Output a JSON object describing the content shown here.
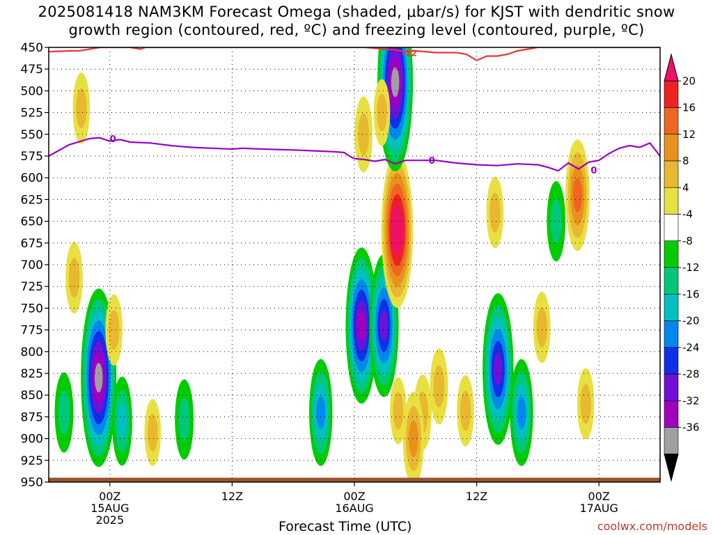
{
  "title": {
    "line1": "2025081418 NAM3KM Forecast Omega (shaded, μbar/s) for KJST with dendritic snow",
    "line2": "growth region (contoured, red, ºC) and freezing level (contoured, purple, ºC)"
  },
  "credit": "coolwx.com/models",
  "chart_data": {
    "type": "heatmap",
    "xlabel": "Forecast Time (UTC)",
    "ylabel": "",
    "x_range": [
      "2025-08-14 18Z",
      "2025-08-17 06Z"
    ],
    "x_ticks": [
      {
        "hours": 6,
        "label1": "00Z",
        "label2": "15AUG",
        "label3": "2025"
      },
      {
        "hours": 18,
        "label1": "12Z",
        "label2": "",
        "label3": ""
      },
      {
        "hours": 30,
        "label1": "00Z",
        "label2": "16AUG",
        "label3": ""
      },
      {
        "hours": 42,
        "label1": "12Z",
        "label2": "",
        "label3": ""
      },
      {
        "hours": 54,
        "label1": "00Z",
        "label2": "17AUG",
        "label3": ""
      }
    ],
    "y_range": [
      450,
      950
    ],
    "y_ticks": [
      450,
      475,
      500,
      525,
      550,
      575,
      600,
      625,
      650,
      675,
      700,
      725,
      750,
      775,
      800,
      825,
      850,
      875,
      900,
      925,
      950
    ],
    "colorbar": {
      "labels": [
        "20",
        "16",
        "12",
        "8",
        "4",
        "-4",
        "-8",
        "-12",
        "-16",
        "-20",
        "-24",
        "-28",
        "-32",
        "-36"
      ],
      "colors": [
        "#ee1166",
        "#ee2222",
        "#ee6622",
        "#e8921e",
        "#e8b830",
        "#e8e040",
        "#ffffff",
        "#00cc00",
        "#00c878",
        "#00c0c0",
        "#0088ee",
        "#1030e8",
        "#7010d8",
        "#a000c0",
        "#a0a0a0",
        "#000000"
      ]
    },
    "freezing_level": {
      "label": "0",
      "color": "#9a00c8",
      "points": [
        [
          0,
          575
        ],
        [
          2,
          562
        ],
        [
          4,
          555
        ],
        [
          5,
          554
        ],
        [
          6,
          558
        ],
        [
          7,
          556
        ],
        [
          8,
          559
        ],
        [
          10,
          560
        ],
        [
          12,
          563
        ],
        [
          14,
          565
        ],
        [
          16,
          566
        ],
        [
          18,
          567
        ],
        [
          19,
          566
        ],
        [
          21,
          567
        ],
        [
          24,
          568
        ],
        [
          26,
          569
        ],
        [
          28,
          570
        ],
        [
          29,
          571
        ],
        [
          29.5,
          575
        ],
        [
          30,
          578
        ],
        [
          31,
          579
        ],
        [
          32,
          581
        ],
        [
          33,
          579
        ],
        [
          34,
          584
        ],
        [
          35,
          580
        ],
        [
          36,
          580
        ],
        [
          38,
          580
        ],
        [
          40,
          583
        ],
        [
          42,
          585
        ],
        [
          44,
          586
        ],
        [
          46,
          584
        ],
        [
          48,
          585
        ],
        [
          49,
          588
        ],
        [
          50,
          592
        ],
        [
          51,
          583
        ],
        [
          52,
          590
        ],
        [
          53,
          582
        ],
        [
          54,
          580
        ],
        [
          55,
          572
        ],
        [
          56,
          566
        ],
        [
          57,
          563
        ],
        [
          58,
          565
        ],
        [
          59,
          560
        ],
        [
          60,
          575
        ]
      ]
    },
    "dgz_contour": {
      "label": "-12",
      "color": "#ee3333",
      "points": [
        [
          0,
          455
        ],
        [
          2,
          454
        ],
        [
          3,
          454
        ],
        [
          4,
          452
        ],
        [
          5,
          450
        ],
        [
          8,
          450
        ],
        [
          9,
          452
        ],
        [
          9.5,
          450
        ],
        [
          31,
          450
        ],
        [
          34,
          453
        ],
        [
          35,
          455
        ],
        [
          36,
          454
        ],
        [
          38,
          456
        ],
        [
          40,
          456
        ],
        [
          41,
          458
        ],
        [
          42,
          465
        ],
        [
          43,
          460
        ],
        [
          44,
          460
        ],
        [
          45,
          458
        ],
        [
          46,
          454
        ],
        [
          47,
          452
        ],
        [
          48,
          450
        ],
        [
          60,
          450
        ]
      ]
    },
    "omega_features": [
      {
        "t": 3.2,
        "p": 520,
        "value": 6
      },
      {
        "t": 2.5,
        "p": 715,
        "value": 6
      },
      {
        "t": 4.9,
        "p": 830,
        "value": -30
      },
      {
        "t": 7.2,
        "p": 880,
        "value": -10
      },
      {
        "t": 6.4,
        "p": 775,
        "value": 6
      },
      {
        "t": 10.2,
        "p": 893,
        "value": 5
      },
      {
        "t": 1.5,
        "p": 870,
        "value": -8
      },
      {
        "t": 13.3,
        "p": 878,
        "value": -8
      },
      {
        "t": 26.7,
        "p": 870,
        "value": -14
      },
      {
        "t": 30.7,
        "p": 770,
        "value": -25
      },
      {
        "t": 32.9,
        "p": 770,
        "value": -22
      },
      {
        "t": 34.2,
        "p": 660,
        "value": 25
      },
      {
        "t": 34.0,
        "p": 490,
        "value": -30
      },
      {
        "t": 30.9,
        "p": 550,
        "value": 7
      },
      {
        "t": 32.7,
        "p": 525,
        "value": 5
      },
      {
        "t": 34.3,
        "p": 868,
        "value": 5
      },
      {
        "t": 36.7,
        "p": 870,
        "value": 7
      },
      {
        "t": 35.8,
        "p": 900,
        "value": 11
      },
      {
        "t": 38.3,
        "p": 840,
        "value": 7
      },
      {
        "t": 40.9,
        "p": 868,
        "value": 6
      },
      {
        "t": 44.1,
        "p": 820,
        "value": -24
      },
      {
        "t": 43.8,
        "p": 640,
        "value": 6
      },
      {
        "t": 46.4,
        "p": 870,
        "value": -14
      },
      {
        "t": 49.8,
        "p": 650,
        "value": -8
      },
      {
        "t": 51.9,
        "p": 620,
        "value": 15
      },
      {
        "t": 52.7,
        "p": 860,
        "value": 6
      },
      {
        "t": 48.4,
        "p": 772,
        "value": 6
      }
    ],
    "terrain_color": "#a0522d"
  }
}
